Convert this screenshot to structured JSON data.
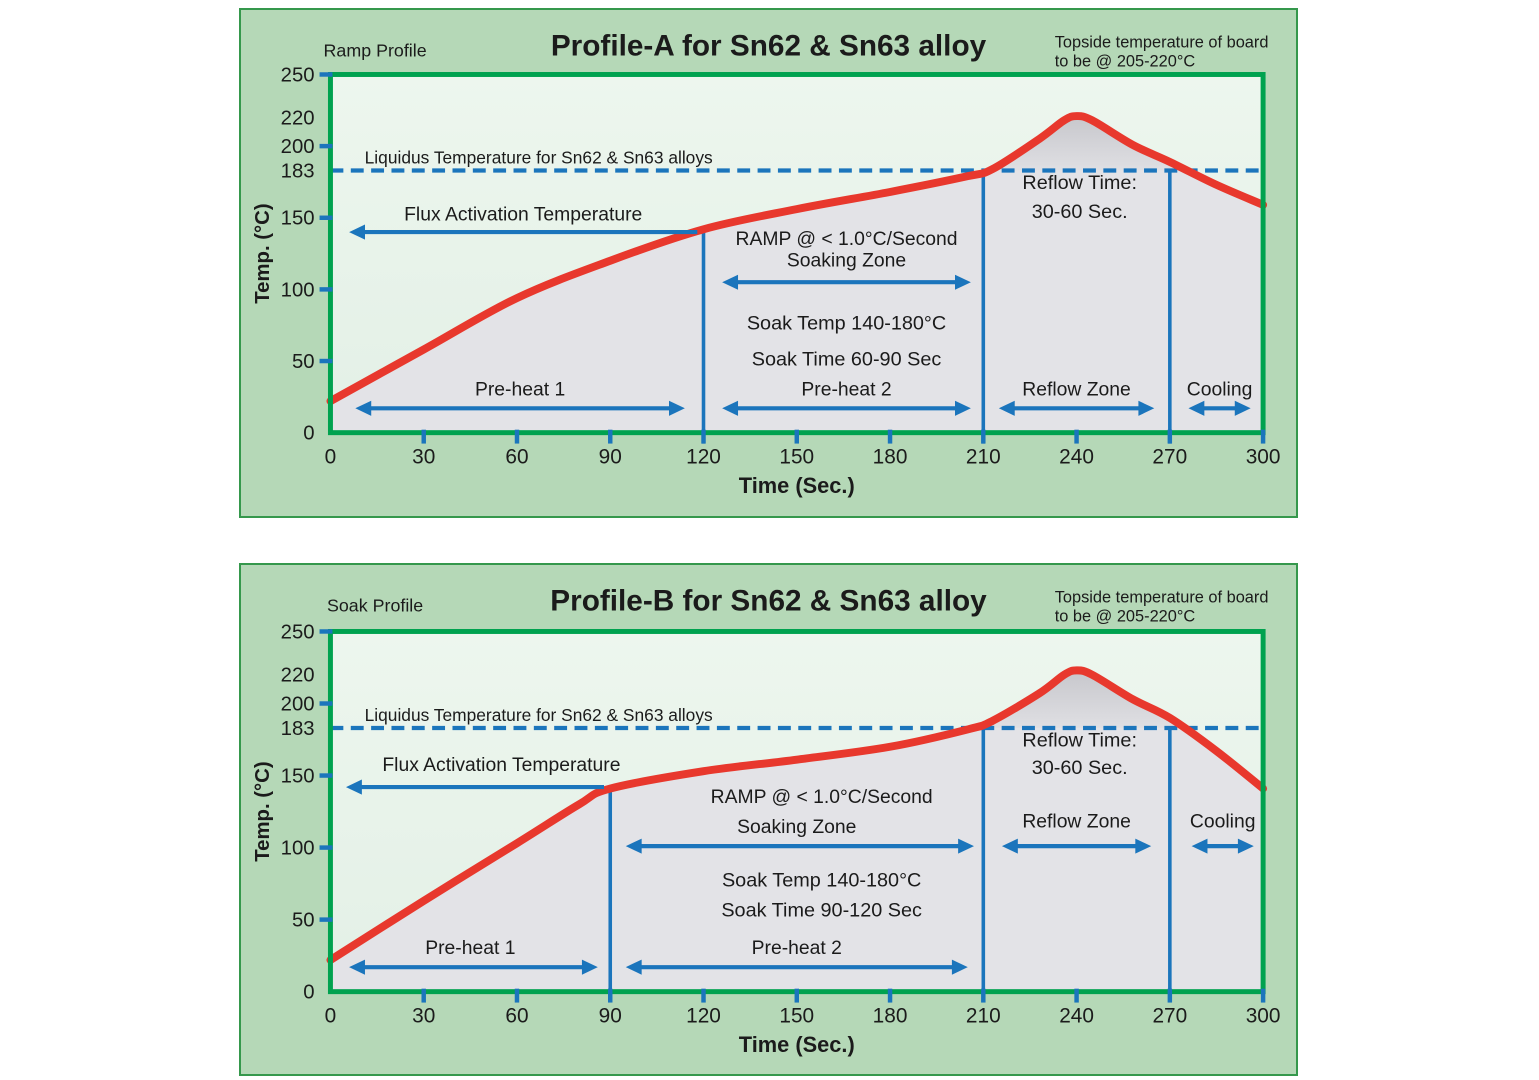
{
  "colors": {
    "page_bg": "#ffffff",
    "panel_bg": "#b5d8b7",
    "panel_border": "#35984c",
    "plot_bg_top": "#edf6ee",
    "plot_bg_bottom": "#e3f0e6",
    "under_curve": "#e3e3e7",
    "peak_fill_top": "#c7c7cc",
    "peak_fill_bottom": "#dfdfe3",
    "curve_red": "#e8382d",
    "blue": "#1b75bc",
    "green": "#00a24f",
    "title_blue": "#1273b8",
    "text": "#1b1b1b"
  },
  "chart_data": [
    {
      "key": "profile-a",
      "type": "line",
      "title": "Profile-A for Sn62 & Sn63 alloy",
      "profile_label": "Ramp Profile",
      "topside_note": [
        "Topside temperature of board",
        "to be @ 205-220°C"
      ],
      "xlabel": "Time (Sec.)",
      "ylabel": "Temp. (°C)",
      "xlim": [
        0,
        300
      ],
      "ylim": [
        0,
        250
      ],
      "x_ticks": [
        0,
        30,
        60,
        90,
        120,
        150,
        180,
        210,
        240,
        270,
        300
      ],
      "y_ticks": [
        {
          "value": 250,
          "label": "250",
          "mark": true
        },
        {
          "value": 220,
          "label": "220",
          "mark": false
        },
        {
          "value": 200,
          "label": "200",
          "mark": true
        },
        {
          "value": 183,
          "label": "183",
          "mark": false
        },
        {
          "value": 150,
          "label": "150",
          "mark": true
        },
        {
          "value": 100,
          "label": "100",
          "mark": true
        },
        {
          "value": 50,
          "label": "50",
          "mark": true
        },
        {
          "value": 0,
          "label": "0",
          "mark": false
        }
      ],
      "liquidus": {
        "value": 183,
        "label": "Liquidus Temperature for Sn62 & Sn63 alloys"
      },
      "curve": [
        [
          0,
          22
        ],
        [
          30,
          58
        ],
        [
          60,
          94
        ],
        [
          90,
          120
        ],
        [
          120,
          142
        ],
        [
          150,
          156
        ],
        [
          180,
          168
        ],
        [
          205,
          179
        ],
        [
          213,
          184
        ],
        [
          228,
          205
        ],
        [
          236,
          218
        ],
        [
          240,
          221
        ],
        [
          245,
          218
        ],
        [
          258,
          201
        ],
        [
          270,
          189
        ],
        [
          285,
          173
        ],
        [
          300,
          159
        ]
      ],
      "zone_lines": [
        {
          "x": 120,
          "top": 142
        },
        {
          "x": 210,
          "top": 183
        },
        {
          "x": 270,
          "top": 183
        }
      ],
      "annotations": [
        {
          "name": "liquidus-label",
          "text": "Liquidus Temperature for Sn62 & Sn63 alloys",
          "x": 11,
          "y": 188,
          "size": 17.5,
          "anchor": "start"
        },
        {
          "name": "flux-activation-label",
          "text": "Flux Activation Temperature",
          "x": 62,
          "y": 148,
          "size": 19.5
        },
        {
          "name": "ramp-rate-label",
          "text": "RAMP @ < 1.0°C/Second",
          "x": 166,
          "y": 131,
          "size": 19.5
        },
        {
          "name": "soaking-zone-label",
          "text": "Soaking Zone",
          "x": 166,
          "y": 116,
          "size": 19.5
        },
        {
          "name": "soak-temp-label",
          "text": "Soak Temp 140-180°C",
          "x": 166,
          "y": 72,
          "size": 20
        },
        {
          "name": "soak-time-label",
          "text": "Soak Time 60-90 Sec",
          "x": 166,
          "y": 47,
          "size": 20
        },
        {
          "name": "reflow-time-label-1",
          "text": "Reflow Time:",
          "x": 241,
          "y": 170,
          "size": 20
        },
        {
          "name": "reflow-time-label-2",
          "text": "30-60 Sec.",
          "x": 241,
          "y": 150,
          "size": 20
        },
        {
          "name": "preheat1-label",
          "text": "Pre-heat 1",
          "x": 61,
          "y": 26,
          "size": 19.5
        },
        {
          "name": "preheat2-label",
          "text": "Pre-heat 2",
          "x": 166,
          "y": 26,
          "size": 19.5
        },
        {
          "name": "reflow-zone-label",
          "text": "Reflow Zone",
          "x": 240,
          "y": 26,
          "size": 19.5
        },
        {
          "name": "cooling-label",
          "text": "Cooling",
          "x": 286,
          "y": 26,
          "size": 19.5
        }
      ],
      "arrows": [
        {
          "name": "flux-activation-arrow",
          "x1": 6,
          "x2": 118,
          "y": 140,
          "heads": "left"
        },
        {
          "name": "soaking-zone-arrow",
          "x1": 126,
          "x2": 206,
          "y": 105,
          "heads": "both"
        },
        {
          "name": "preheat1-arrow",
          "x1": 8,
          "x2": 114,
          "y": 17,
          "heads": "both"
        },
        {
          "name": "preheat2-arrow",
          "x1": 126,
          "x2": 206,
          "y": 17,
          "heads": "both"
        },
        {
          "name": "reflow-zone-arrow",
          "x1": 215,
          "x2": 265,
          "y": 17,
          "heads": "both"
        },
        {
          "name": "cooling-arrow",
          "x1": 276,
          "x2": 296,
          "y": 17,
          "heads": "both"
        }
      ]
    },
    {
      "key": "profile-b",
      "type": "line",
      "title": "Profile-B for Sn62 & Sn63 alloy",
      "profile_label": "Soak Profile",
      "topside_note": [
        "Topside temperature of board",
        "to be @ 205-220°C"
      ],
      "xlabel": "Time (Sec.)",
      "ylabel": "Temp. (°C)",
      "xlim": [
        0,
        300
      ],
      "ylim": [
        0,
        250
      ],
      "x_ticks": [
        0,
        30,
        60,
        90,
        120,
        150,
        180,
        210,
        240,
        270,
        300
      ],
      "y_ticks": [
        {
          "value": 250,
          "label": "250",
          "mark": true
        },
        {
          "value": 220,
          "label": "220",
          "mark": false
        },
        {
          "value": 200,
          "label": "200",
          "mark": true
        },
        {
          "value": 183,
          "label": "183",
          "mark": false
        },
        {
          "value": 150,
          "label": "150",
          "mark": true
        },
        {
          "value": 100,
          "label": "100",
          "mark": true
        },
        {
          "value": 50,
          "label": "50",
          "mark": true
        },
        {
          "value": 0,
          "label": "0",
          "mark": false
        }
      ],
      "liquidus": {
        "value": 183,
        "label": "Liquidus Temperature for Sn62 & Sn63 alloys"
      },
      "curve": [
        [
          0,
          22
        ],
        [
          30,
          63
        ],
        [
          60,
          103
        ],
        [
          80,
          130
        ],
        [
          90,
          141
        ],
        [
          120,
          153
        ],
        [
          150,
          161
        ],
        [
          180,
          170
        ],
        [
          205,
          182
        ],
        [
          213,
          188
        ],
        [
          228,
          207
        ],
        [
          236,
          220
        ],
        [
          240,
          223
        ],
        [
          245,
          220
        ],
        [
          258,
          203
        ],
        [
          270,
          190
        ],
        [
          285,
          167
        ],
        [
          300,
          141
        ]
      ],
      "zone_lines": [
        {
          "x": 90,
          "top": 141
        },
        {
          "x": 210,
          "top": 183
        },
        {
          "x": 270,
          "top": 183
        }
      ],
      "annotations": [
        {
          "name": "liquidus-label",
          "text": "Liquidus Temperature for Sn62 & Sn63 alloys",
          "x": 11,
          "y": 188,
          "size": 17.5,
          "anchor": "start"
        },
        {
          "name": "flux-activation-label",
          "text": "Flux Activation Temperature",
          "x": 55,
          "y": 153,
          "size": 19.5
        },
        {
          "name": "ramp-rate-label",
          "text": "RAMP @ < 1.0°C/Second",
          "x": 158,
          "y": 131,
          "size": 19.5
        },
        {
          "name": "soaking-zone-label",
          "text": "Soaking Zone",
          "x": 150,
          "y": 110,
          "size": 19.5
        },
        {
          "name": "soak-temp-label",
          "text": "Soak Temp 140-180°C",
          "x": 158,
          "y": 73,
          "size": 20
        },
        {
          "name": "soak-time-label",
          "text": "Soak Time 90-120 Sec",
          "x": 158,
          "y": 52,
          "size": 20
        },
        {
          "name": "reflow-time-label-1",
          "text": "Reflow Time:",
          "x": 241,
          "y": 170,
          "size": 20
        },
        {
          "name": "reflow-time-label-2",
          "text": "30-60 Sec.",
          "x": 241,
          "y": 151,
          "size": 20
        },
        {
          "name": "preheat1-label",
          "text": "Pre-heat 1",
          "x": 45,
          "y": 26,
          "size": 19.5
        },
        {
          "name": "preheat2-label",
          "text": "Pre-heat 2",
          "x": 150,
          "y": 26,
          "size": 19.5
        },
        {
          "name": "reflow-zone-label",
          "text": "Reflow Zone",
          "x": 240,
          "y": 114,
          "size": 19.5
        },
        {
          "name": "cooling-label",
          "text": "Cooling",
          "x": 287,
          "y": 114,
          "size": 19.5
        }
      ],
      "arrows": [
        {
          "name": "flux-activation-arrow",
          "x1": 5,
          "x2": 88,
          "y": 142,
          "heads": "left"
        },
        {
          "name": "soaking-zone-arrow",
          "x1": 95,
          "x2": 207,
          "y": 101,
          "heads": "both"
        },
        {
          "name": "preheat1-arrow",
          "x1": 6,
          "x2": 86,
          "y": 17,
          "heads": "both"
        },
        {
          "name": "preheat2-arrow",
          "x1": 95,
          "x2": 205,
          "y": 17,
          "heads": "both"
        },
        {
          "name": "reflow-zone-arrow",
          "x1": 216,
          "x2": 264,
          "y": 101,
          "heads": "both"
        },
        {
          "name": "cooling-arrow",
          "x1": 277,
          "x2": 297,
          "y": 101,
          "heads": "both"
        }
      ]
    }
  ]
}
